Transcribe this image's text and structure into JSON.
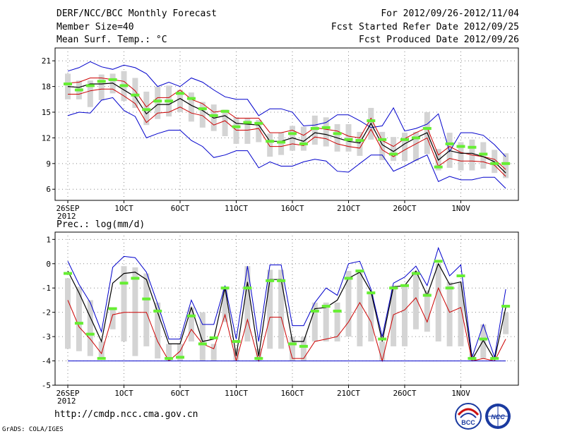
{
  "header": {
    "title": "DERF/NCC/BCC Monthly Forecast",
    "member_size": "Member Size=40",
    "variable": "Mean Surf. Temp.: °C",
    "forecast_period": "For 2012/09/26-2012/11/04",
    "fcst_started": "Fcst Started Refer Date 2012/09/25",
    "fcst_produced": "Fcst Produced Date 2012/09/26"
  },
  "footer": {
    "url": "http://cmdp.ncc.cma.gov.cn",
    "credit": "GrADS: COLA/IGES",
    "logo_left": "BCC",
    "logo_right": "NCC"
  },
  "chart_data": [
    {
      "type": "line",
      "name": "temperature",
      "title": "Mean Surf. Temp.: °C",
      "ylabel": "°C",
      "ylim": [
        4.7,
        22.5
      ],
      "yticks": [
        6,
        9,
        12,
        15,
        18,
        21
      ],
      "x": [
        1,
        2,
        3,
        4,
        5,
        6,
        7,
        8,
        9,
        10,
        11,
        12,
        13,
        14,
        15,
        16,
        17,
        18,
        19,
        20,
        21,
        22,
        23,
        24,
        25,
        26,
        27,
        28,
        29,
        30,
        31,
        32,
        33,
        34,
        35,
        36,
        37,
        38,
        39,
        40
      ],
      "x_tick_days": [
        1,
        6,
        11,
        16,
        21,
        26,
        31,
        36
      ],
      "x_tick_labels": [
        "26SEP",
        "1OCT",
        "6OCT",
        "11OCT",
        "16OCT",
        "21OCT",
        "26OCT",
        "1NOV"
      ],
      "x_year_label": "2012",
      "series": [
        {
          "name": "max",
          "color": "#0000cc",
          "values": [
            19.8,
            20.2,
            20.9,
            20.3,
            20.0,
            20.5,
            20.2,
            19.5,
            18.0,
            18.5,
            18.0,
            19.0,
            18.5,
            17.6,
            16.8,
            16.5,
            16.5,
            14.6,
            15.4,
            15.4,
            15.0,
            13.4,
            13.5,
            13.8,
            14.7,
            14.7,
            14.0,
            13.2,
            13.4,
            15.5,
            12.8,
            13.1,
            13.6,
            14.8,
            10.4,
            12.6,
            12.6,
            12.3,
            11.2,
            9.8
          ]
        },
        {
          "name": "upper",
          "color": "#cc0000",
          "values": [
            18.4,
            18.5,
            19.0,
            19.0,
            18.8,
            18.6,
            17.5,
            15.6,
            16.7,
            16.7,
            17.6,
            16.5,
            16.0,
            15.0,
            15.2,
            14.3,
            14.3,
            14.3,
            12.6,
            12.6,
            12.9,
            12.3,
            13.2,
            13.0,
            12.8,
            12.2,
            12.0,
            14.3,
            11.7,
            11.0,
            11.9,
            12.6,
            13.2,
            10.0,
            11.0,
            10.3,
            10.0,
            9.8,
            9.5,
            8.3
          ]
        },
        {
          "name": "mean",
          "color": "#000000",
          "values": [
            18.0,
            17.9,
            18.3,
            18.3,
            18.4,
            17.6,
            16.8,
            14.8,
            15.9,
            15.9,
            16.6,
            15.8,
            15.2,
            14.3,
            14.6,
            13.7,
            13.6,
            13.5,
            11.6,
            11.6,
            12.0,
            11.6,
            12.6,
            12.4,
            12.0,
            11.6,
            11.4,
            13.7,
            11.2,
            10.4,
            11.3,
            12.0,
            12.6,
            9.4,
            10.5,
            10.2,
            10.2,
            9.8,
            9.2,
            7.9
          ]
        },
        {
          "name": "lower",
          "color": "#cc0000",
          "values": [
            17.1,
            17.1,
            17.5,
            17.7,
            17.7,
            16.9,
            16.0,
            13.8,
            14.9,
            15.0,
            15.6,
            14.9,
            14.6,
            13.5,
            14.0,
            12.9,
            12.9,
            13.1,
            11.0,
            11.0,
            11.3,
            11.1,
            12.1,
            11.9,
            11.3,
            11.0,
            10.8,
            13.0,
            10.6,
            9.8,
            10.6,
            11.3,
            12.0,
            8.7,
            9.6,
            9.3,
            9.3,
            9.2,
            8.8,
            7.5
          ]
        },
        {
          "name": "min",
          "color": "#0000cc",
          "values": [
            14.6,
            15.0,
            14.9,
            16.4,
            16.7,
            15.2,
            14.5,
            12.0,
            12.5,
            12.9,
            12.9,
            11.7,
            11.0,
            9.7,
            10.0,
            10.5,
            10.5,
            8.5,
            9.2,
            8.7,
            8.7,
            9.2,
            9.5,
            9.3,
            8.1,
            8.0,
            9.0,
            10.0,
            10.0,
            8.1,
            8.7,
            9.4,
            10.0,
            6.9,
            7.5,
            7.1,
            7.1,
            7.4,
            7.4,
            6.1
          ]
        },
        {
          "name": "observed",
          "color": "#66ee33",
          "values": [
            18.3,
            17.6,
            18.1,
            18.6,
            18.8,
            18.1,
            17.0,
            15.3,
            16.3,
            16.3,
            17.2,
            16.6,
            15.4,
            14.6,
            15.1,
            13.3,
            13.8,
            13.7,
            11.6,
            11.5,
            12.5,
            11.3,
            13.1,
            13.2,
            12.5,
            11.8,
            11.7,
            14.0,
            11.8,
            10.1,
            11.8,
            12.0,
            13.1,
            8.6,
            11.3,
            11.0,
            10.9,
            10.1,
            9.0,
            9.0
          ]
        },
        {
          "name": "range_high",
          "color": "#d4d4d4",
          "values": [
            19.5,
            18.7,
            18.7,
            19.4,
            19.5,
            19.8,
            19.0,
            17.4,
            18.0,
            18.1,
            17.6,
            17.3,
            16.2,
            15.9,
            15.3,
            14.4,
            14.3,
            14.1,
            12.5,
            12.6,
            13.4,
            13.3,
            14.6,
            14.4,
            13.6,
            13.6,
            12.7,
            15.5,
            12.7,
            12.1,
            12.6,
            12.7,
            15.0,
            10.7,
            12.6,
            11.5,
            11.8,
            11.5,
            10.6,
            10.2
          ]
        },
        {
          "name": "range_low",
          "color": "#d4d4d4",
          "values": [
            16.5,
            16.5,
            15.6,
            16.4,
            17.2,
            16.3,
            15.5,
            13.5,
            14.2,
            14.5,
            15.0,
            13.9,
            13.2,
            12.8,
            12.2,
            11.3,
            11.3,
            11.5,
            9.8,
            10.0,
            10.5,
            10.5,
            11.2,
            11.0,
            10.4,
            10.4,
            9.9,
            11.8,
            9.4,
            9.3,
            9.3,
            9.3,
            10.1,
            8.2,
            8.5,
            8.2,
            8.2,
            8.4,
            7.9,
            7.3
          ]
        }
      ]
    },
    {
      "type": "line",
      "name": "precipitation",
      "title": "Prec.: log(mm/d)",
      "ylabel": "log(mm/d)",
      "ylim": [
        -5,
        1.3
      ],
      "yticks": [
        -5,
        -4,
        -3,
        -2,
        -1,
        0,
        1
      ],
      "x": [
        1,
        2,
        3,
        4,
        5,
        6,
        7,
        8,
        9,
        10,
        11,
        12,
        13,
        14,
        15,
        16,
        17,
        18,
        19,
        20,
        21,
        22,
        23,
        24,
        25,
        26,
        27,
        28,
        29,
        30,
        31,
        32,
        33,
        34,
        35,
        36,
        37,
        38,
        39,
        40
      ],
      "x_tick_days": [
        1,
        6,
        11,
        16,
        21,
        26,
        31,
        36
      ],
      "x_tick_labels": [
        "26SEP",
        "1OCT",
        "6OCT",
        "11OCT",
        "16OCT",
        "21OCT",
        "26OCT",
        "1NOV"
      ],
      "x_year_label": "2012",
      "series": [
        {
          "name": "max",
          "color": "#0000cc",
          "values": [
            0.1,
            -0.85,
            -1.6,
            -2.8,
            -0.15,
            0.3,
            0.25,
            -0.35,
            -1.65,
            -3.1,
            -3.1,
            -1.5,
            -2.5,
            -2.5,
            -0.9,
            -3.1,
            -0.1,
            -3.2,
            -0.05,
            -0.05,
            -2.55,
            -2.55,
            -1.6,
            -1.0,
            -1.3,
            0.0,
            0.1,
            -1.05,
            -3.0,
            -0.8,
            -0.55,
            -0.1,
            -0.9,
            0.65,
            -0.5,
            -0.05,
            -3.85,
            -2.5,
            -3.85,
            -1.05
          ]
        },
        {
          "name": "mean",
          "color": "#000000",
          "values": [
            -0.3,
            -1.2,
            -2.2,
            -3.2,
            -0.8,
            -0.4,
            -0.35,
            -0.65,
            -2.0,
            -3.3,
            -3.3,
            -1.8,
            -3.2,
            -3.1,
            -1.0,
            -3.8,
            -0.75,
            -3.8,
            -0.65,
            -0.65,
            -3.2,
            -3.2,
            -1.85,
            -1.8,
            -1.5,
            -0.6,
            -0.35,
            -1.15,
            -3.2,
            -0.95,
            -0.9,
            -0.3,
            -1.3,
            0.0,
            -0.85,
            -0.75,
            -3.95,
            -3.15,
            -3.95,
            -1.8
          ]
        },
        {
          "name": "min_band",
          "color": "#cc0000",
          "values": [
            -1.5,
            -2.6,
            -3.1,
            -3.7,
            -2.1,
            -2.0,
            -2.0,
            -2.0,
            -3.2,
            -4.0,
            -3.6,
            -2.7,
            -3.3,
            -3.5,
            -2.1,
            -4.0,
            -2.3,
            -4.0,
            -2.2,
            -2.2,
            -3.9,
            -3.9,
            -3.2,
            -3.1,
            -3.0,
            -2.4,
            -1.6,
            -2.4,
            -4.0,
            -2.1,
            -1.9,
            -1.4,
            -2.4,
            -1.0,
            -2.0,
            -1.8,
            -4.0,
            -3.9,
            -4.0,
            -3.1
          ]
        },
        {
          "name": "floor",
          "color": "#0000cc",
          "values": [
            -4,
            -4,
            -4,
            -4,
            -4,
            -4,
            -4,
            -4,
            -4,
            -4,
            -4,
            -4,
            -4,
            -4,
            -4,
            -4,
            -4,
            -4,
            -4,
            -4,
            -4,
            -4,
            -4,
            -4,
            -4,
            -4,
            -4,
            -4,
            -4,
            -4,
            -4,
            -4,
            -4,
            -4,
            -4,
            -4,
            -4,
            -4,
            -4,
            -4
          ]
        },
        {
          "name": "observed",
          "color": "#66ee33",
          "values": [
            -0.4,
            -2.45,
            -2.9,
            -3.9,
            -1.85,
            -0.8,
            -0.6,
            -1.45,
            -1.95,
            -3.9,
            -3.85,
            -2.15,
            -3.3,
            -3.05,
            -1.0,
            -3.2,
            -1.0,
            -3.9,
            -0.7,
            -0.7,
            -3.3,
            -3.4,
            -1.95,
            -1.75,
            -1.95,
            -0.6,
            -0.3,
            -1.2,
            -3.1,
            -1.0,
            -0.9,
            -0.4,
            -1.3,
            0.1,
            -1.0,
            -0.5,
            -3.9,
            -3.1,
            -3.9,
            -1.75
          ]
        },
        {
          "name": "range_high",
          "color": "#d4d4d4",
          "values": [
            -0.6,
            -0.95,
            -1.5,
            -3.2,
            -1.8,
            -0.1,
            -0.15,
            -0.4,
            -1.6,
            -3.3,
            -3.3,
            -1.8,
            -2.0,
            -3.3,
            -0.95,
            -3.5,
            -0.1,
            -3.5,
            -0.25,
            -0.25,
            -3.0,
            -3.0,
            -1.6,
            -1.6,
            -1.6,
            -0.3,
            -0.3,
            -1.15,
            -3.2,
            -0.9,
            -0.9,
            -0.3,
            -1.1,
            0.0,
            -0.75,
            -0.75,
            -3.7,
            -2.5,
            -4.0,
            -2.0
          ]
        },
        {
          "name": "range_low",
          "color": "#d4d4d4",
          "values": [
            -3.5,
            -3.6,
            -3.8,
            -3.9,
            -2.7,
            -3.2,
            -3.8,
            -3.4,
            -3.9,
            -4.0,
            -4.0,
            -3.2,
            -4.0,
            -4.0,
            -2.4,
            -4.0,
            -3.2,
            -4.0,
            -3.5,
            -3.5,
            -4.0,
            -4.0,
            -3.2,
            -3.2,
            -3.2,
            -3.0,
            -3.4,
            -3.2,
            -4.0,
            -3.4,
            -3.4,
            -2.7,
            -2.8,
            -3.2,
            -3.4,
            -3.4,
            -4.0,
            -3.9,
            -4.0,
            -2.9
          ]
        }
      ]
    }
  ]
}
